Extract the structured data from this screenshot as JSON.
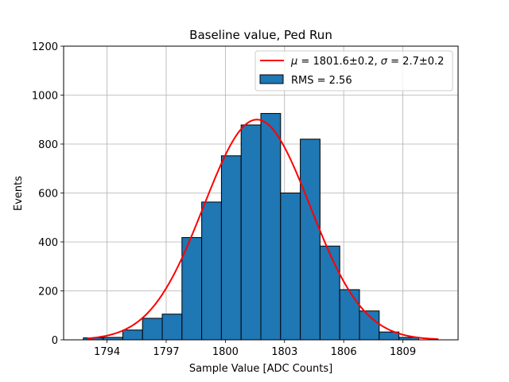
{
  "chart_data": {
    "type": "bar",
    "title": "Baseline value, Ped Run",
    "xlabel": "Sample Value [ADC Counts]",
    "ylabel": "Events",
    "xlim": [
      1791.8,
      1811.8
    ],
    "ylim": [
      0,
      1200
    ],
    "grid": true,
    "legend_position": "top-right",
    "xticks": [
      1794,
      1797,
      1800,
      1803,
      1806,
      1809
    ],
    "yticks": [
      0,
      200,
      400,
      600,
      800,
      1000,
      1200
    ],
    "bin_edges": [
      1792.8,
      1793.8,
      1794.8,
      1795.8,
      1796.8,
      1797.8,
      1798.8,
      1799.8,
      1800.8,
      1801.8,
      1802.8,
      1803.8,
      1804.8,
      1805.8,
      1806.8,
      1807.8,
      1808.8,
      1809.8
    ],
    "values": [
      8,
      10,
      40,
      88,
      105,
      418,
      563,
      752,
      878,
      925,
      600,
      820,
      383,
      205,
      118,
      32,
      10
    ],
    "series": [
      {
        "name": "RMS = 2.56",
        "kind": "histogram",
        "color": "#1f77b4",
        "edge_color": "#000000"
      },
      {
        "name": "μ = 1801.6±0.2, σ = 2.7±0.2",
        "kind": "gaussian_fit",
        "color": "#ff0000",
        "mu": 1801.6,
        "sigma": 2.7,
        "amplitude": 900,
        "x_range": [
          1793.0,
          1810.8
        ]
      }
    ],
    "legend": [
      {
        "mu_label": "μ",
        "mu_text": " = 1801.6±0.2, ",
        "sigma_label": "σ",
        "sigma_text": " = 2.7±0.2"
      },
      {
        "text": "RMS = 2.56"
      }
    ]
  }
}
